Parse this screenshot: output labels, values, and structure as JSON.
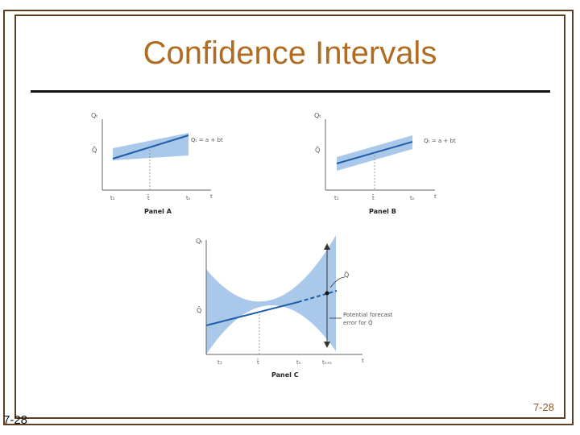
{
  "title": "Confidence Intervals",
  "slide_number": "7-28",
  "corner_label": "7-28",
  "colors": {
    "frame": "#5e3f22",
    "title": "#b06d22",
    "band": "#a9c8ea",
    "line": "#1f5fa8"
  },
  "panel_a": {
    "label": "Panel A",
    "y_axis": "Qₜ",
    "y_mark": "Q̄",
    "equation": "Qₜ = a + bt",
    "ticks": [
      "t₁",
      "t̄",
      "tₙ",
      "t"
    ]
  },
  "panel_b": {
    "label": "Panel B",
    "y_axis": "Qₜ",
    "y_mark": "Q̄",
    "equation": "Qₜ = a + bt",
    "ticks": [
      "t₁",
      "t̄",
      "tₙ",
      "t"
    ]
  },
  "panel_c": {
    "label": "Panel C",
    "y_axis": "Qₜ",
    "y_mark": "Q̄",
    "q_hat": "Q̂",
    "annotation": [
      "Potential forecast",
      "error for Q̂"
    ],
    "ticks": [
      "t₁",
      "t̄",
      "tₙ",
      "tₙ₊ₖ",
      "t"
    ]
  }
}
